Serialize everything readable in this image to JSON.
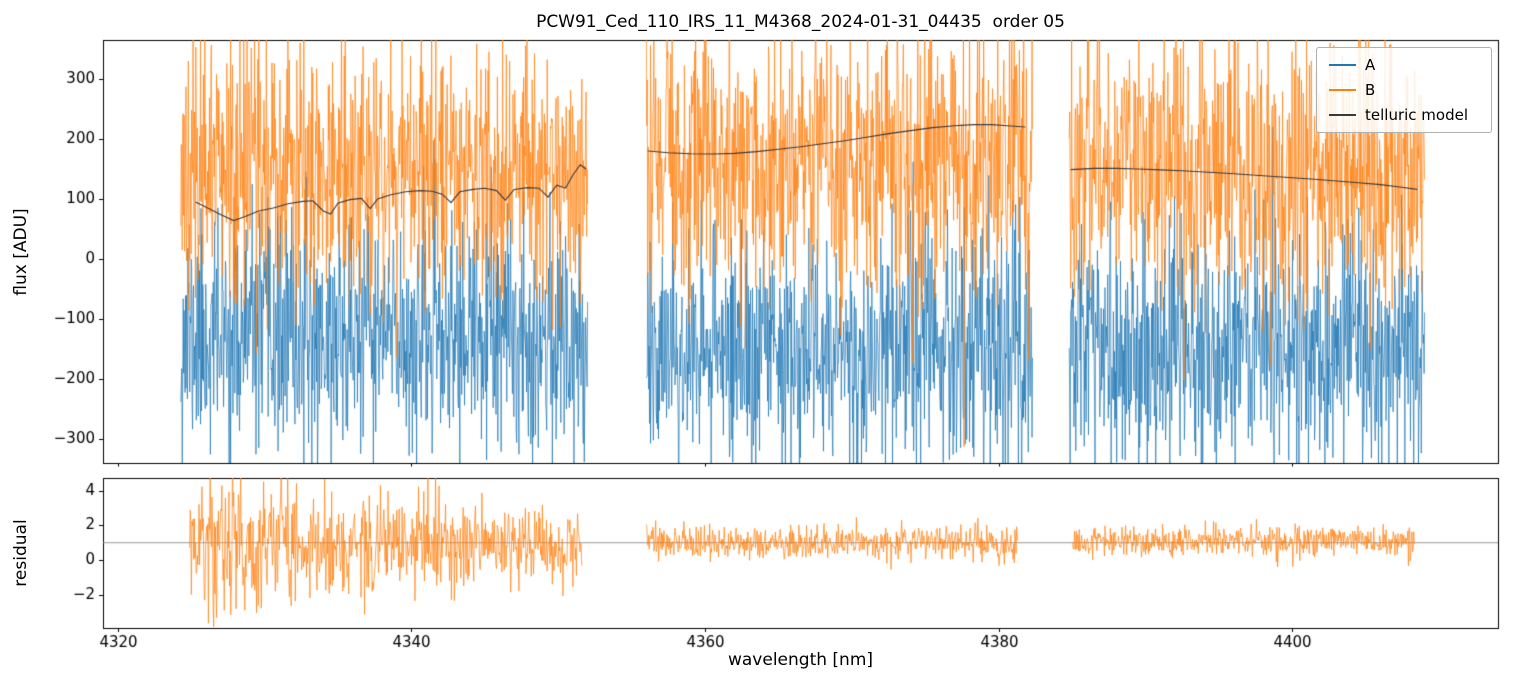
{
  "chart_data": {
    "type": "line",
    "title": "PCW91_Ced_110_IRS_11_M4368_2024-01-31_04435  order 05",
    "xlabel": "wavelength [nm]",
    "xlim": [
      4319.0,
      4414.0
    ],
    "xticks": [
      4320,
      4340,
      4360,
      4380,
      4400
    ],
    "background": "#ffffff",
    "legend": [
      {
        "label": "A",
        "color": "#1f77b4"
      },
      {
        "label": "B",
        "color": "#ff7f0e"
      },
      {
        "label": "telluric model",
        "color": "#3a3a3a"
      }
    ],
    "panels": [
      {
        "name": "flux",
        "ylabel": "flux [ADU]",
        "ylim": [
          -340,
          365
        ],
        "yticks": [
          300,
          200,
          100,
          0,
          -100,
          -200,
          -300
        ],
        "series": [
          {
            "name": "A",
            "color": "#1f77b4",
            "segments": [
              [
                4324.3,
                4352.0
              ],
              [
                4356.0,
                4382.3
              ],
              [
                4384.8,
                4409.0
              ]
            ],
            "level": [
              -130,
              -150,
              -145
            ],
            "spread": [
              95,
              100,
              95
            ]
          },
          {
            "name": "B",
            "color": "#ff7f0e",
            "segments": [
              [
                4324.3,
                4352.0
              ],
              [
                4356.0,
                4382.3
              ],
              [
                4384.8,
                4409.0
              ]
            ],
            "level": [
              150,
              165,
              150
            ],
            "spread": [
              110,
              116,
              110
            ]
          }
        ],
        "telluric": {
          "name": "telluric model",
          "color": "#3a3a3a",
          "segments": [
            [
              [
                4325.3,
                95
              ],
              [
                4326.2,
                84
              ],
              [
                4327.0,
                74
              ],
              [
                4327.9,
                64
              ],
              [
                4328.6,
                70
              ],
              [
                4329.6,
                80
              ],
              [
                4330.6,
                85
              ],
              [
                4331.6,
                92
              ],
              [
                4332.6,
                96
              ],
              [
                4333.3,
                97
              ],
              [
                4334.0,
                80
              ],
              [
                4334.5,
                75
              ],
              [
                4335.0,
                93
              ],
              [
                4335.8,
                99
              ],
              [
                4336.6,
                101
              ],
              [
                4337.2,
                84
              ],
              [
                4337.7,
                100
              ],
              [
                4338.6,
                107
              ],
              [
                4339.6,
                112
              ],
              [
                4340.6,
                114
              ],
              [
                4341.4,
                113
              ],
              [
                4342.1,
                108
              ],
              [
                4342.7,
                94
              ],
              [
                4343.3,
                112
              ],
              [
                4344.2,
                116
              ],
              [
                4345.0,
                118
              ],
              [
                4345.8,
                114
              ],
              [
                4346.4,
                98
              ],
              [
                4347.0,
                116
              ],
              [
                4347.9,
                119
              ],
              [
                4348.7,
                118
              ],
              [
                4349.3,
                103
              ],
              [
                4349.9,
                123
              ],
              [
                4350.5,
                118
              ],
              [
                4351.0,
                140
              ],
              [
                4351.5,
                157
              ],
              [
                4351.9,
                150
              ]
            ],
            [
              [
                4356.1,
                180
              ],
              [
                4357.5,
                177
              ],
              [
                4359.0,
                175.5
              ],
              [
                4360.5,
                175
              ],
              [
                4362.0,
                176
              ],
              [
                4363.5,
                179
              ],
              [
                4365.0,
                183
              ],
              [
                4366.5,
                187
              ],
              [
                4368.0,
                192
              ],
              [
                4369.5,
                197
              ],
              [
                4371.0,
                203
              ],
              [
                4372.5,
                209
              ],
              [
                4374.0,
                214
              ],
              [
                4375.5,
                219
              ],
              [
                4377.0,
                222
              ],
              [
                4378.3,
                224
              ],
              [
                4379.5,
                224
              ],
              [
                4380.6,
                222
              ],
              [
                4381.8,
                220
              ]
            ],
            [
              [
                4384.9,
                149
              ],
              [
                4386.5,
                151
              ],
              [
                4388.0,
                151
              ],
              [
                4389.5,
                150
              ],
              [
                4391.0,
                148.5
              ],
              [
                4392.5,
                147
              ],
              [
                4394.0,
                145
              ],
              [
                4395.5,
                143
              ],
              [
                4397.0,
                140.5
              ],
              [
                4398.5,
                138
              ],
              [
                4400.0,
                135.5
              ],
              [
                4401.5,
                133
              ],
              [
                4403.0,
                130
              ],
              [
                4404.5,
                127
              ],
              [
                4406.0,
                124
              ],
              [
                4407.3,
                120
              ],
              [
                4408.5,
                116
              ]
            ]
          ]
        }
      },
      {
        "name": "residual",
        "ylabel": "residual",
        "ylim": [
          -3.94,
          4.75
        ],
        "yticks": [
          4,
          2,
          0,
          -2
        ],
        "hline": 1.0,
        "hline_color": "#808080",
        "series": [
          {
            "name": "residual",
            "color": "#ff7f0e",
            "segments": [
              [
                4324.9,
                4351.6
              ],
              [
                4356.0,
                4381.3
              ],
              [
                4385.0,
                4408.3
              ]
            ],
            "level": [
              0.85,
              1.0,
              1.05
            ],
            "spread_start": [
              2.1,
              0.5,
              0.45
            ],
            "spread_end": [
              0.9,
              0.5,
              0.45
            ]
          }
        ]
      }
    ]
  }
}
